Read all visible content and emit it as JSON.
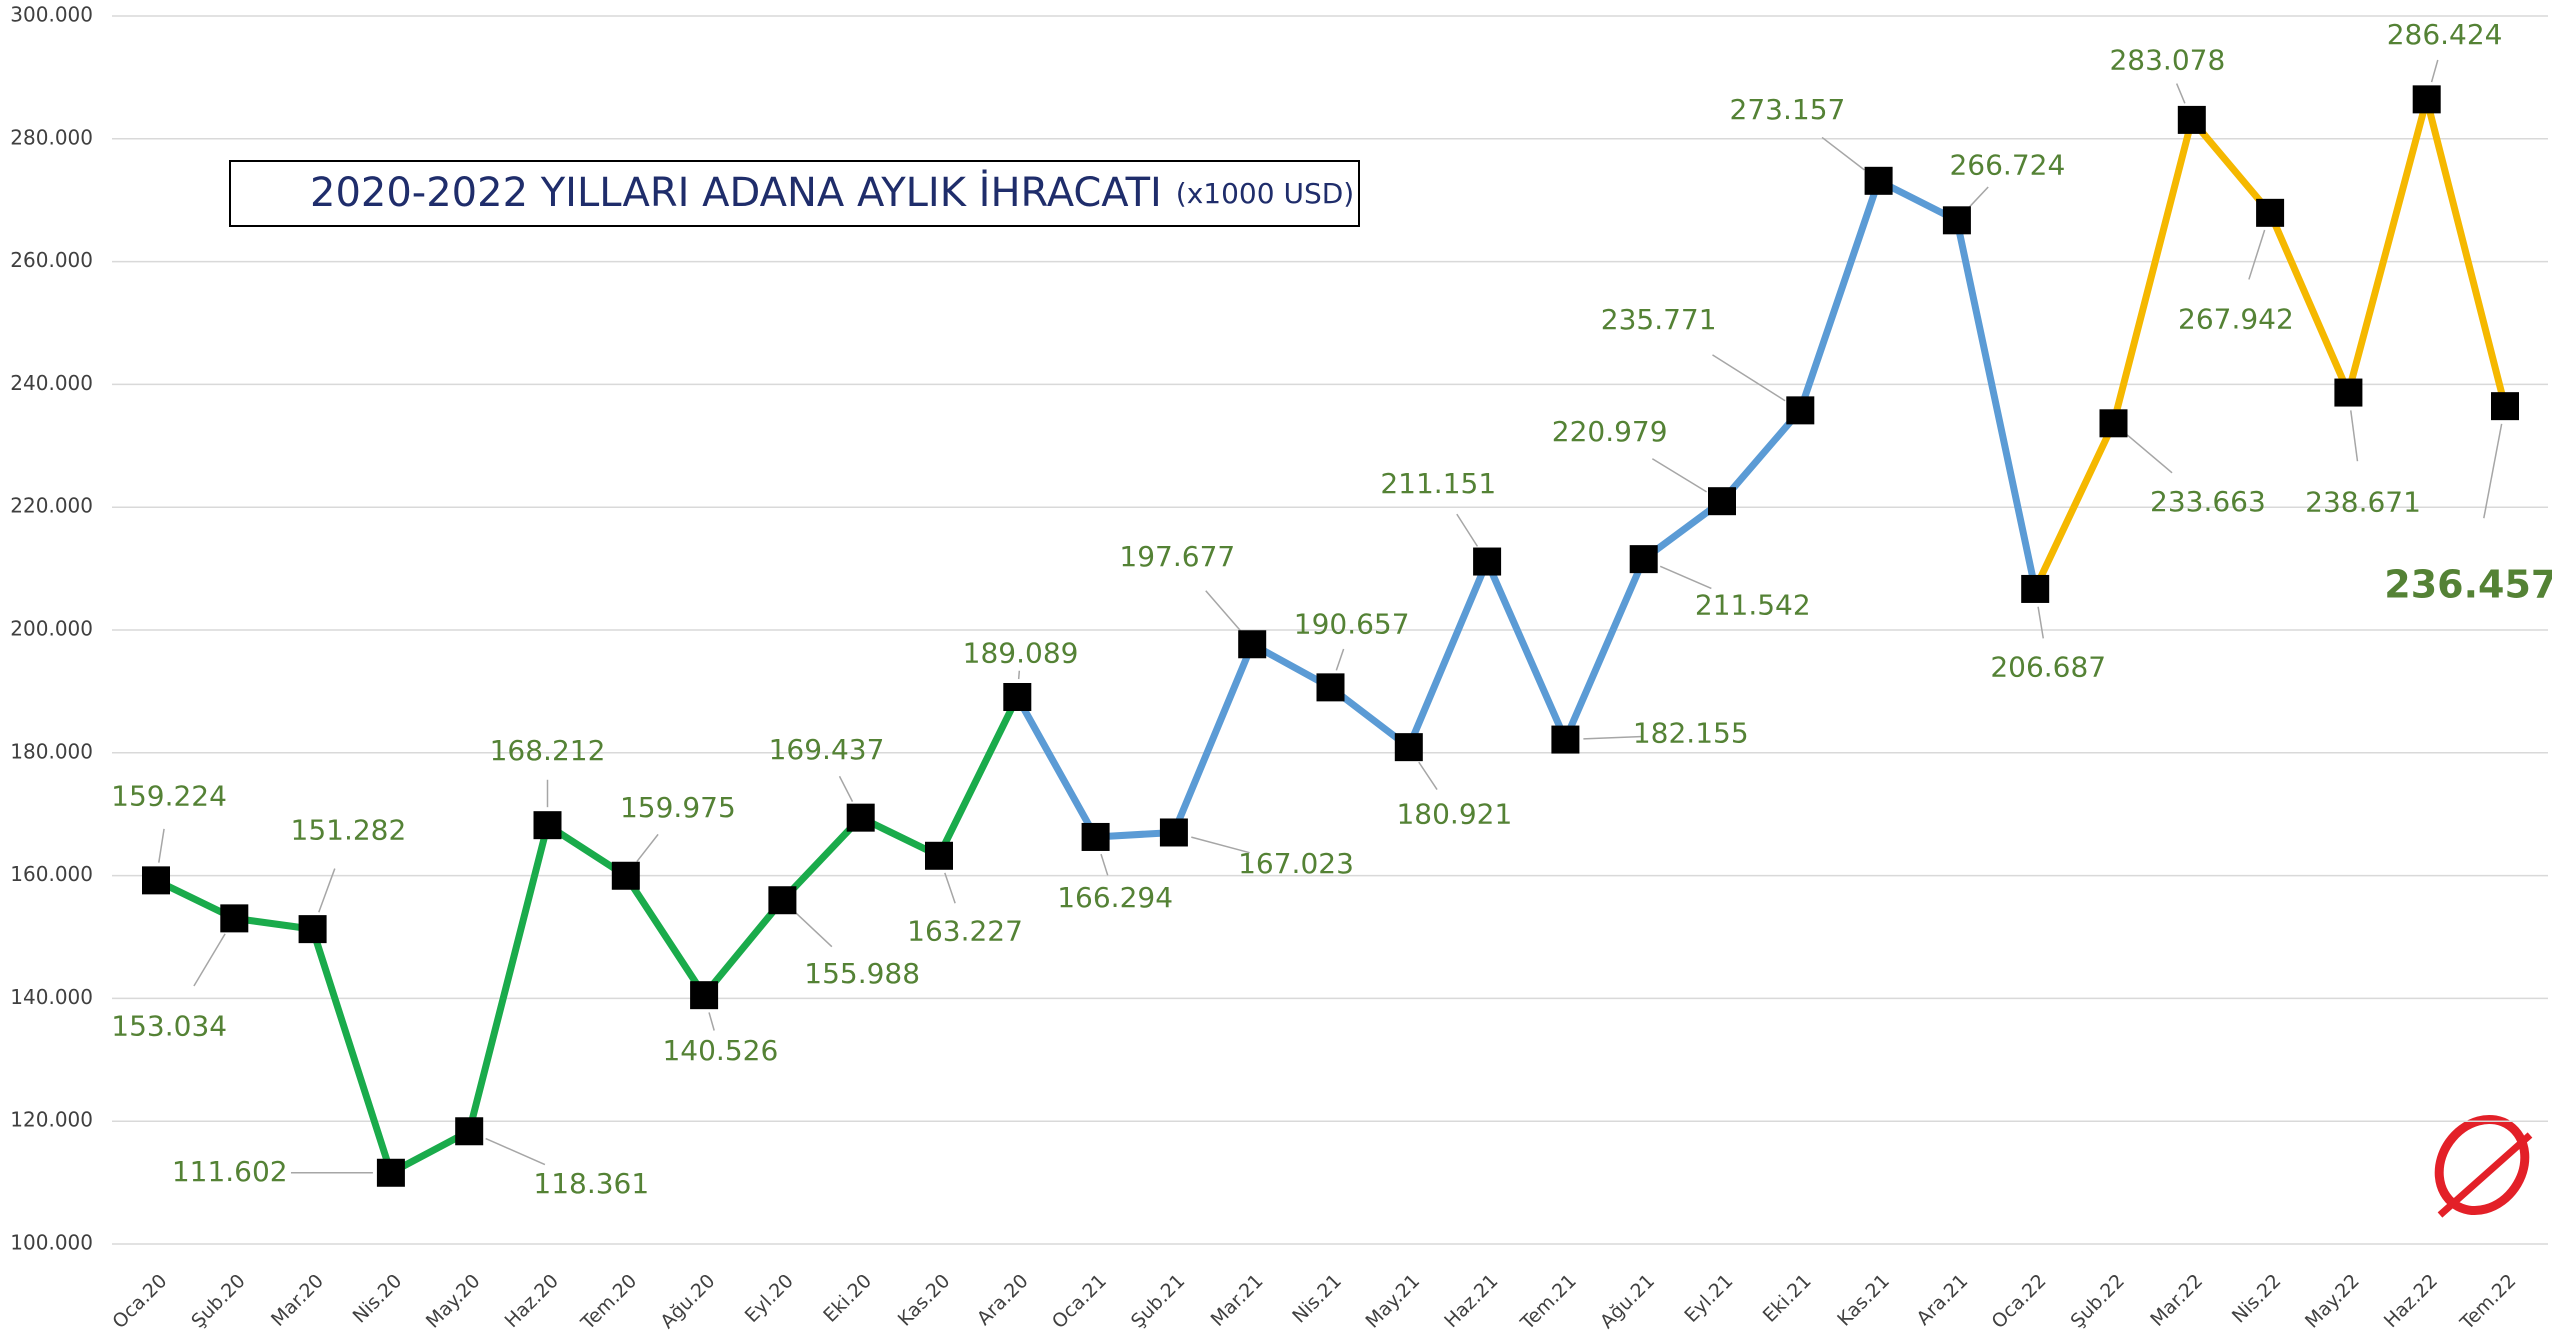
{
  "chart_data": {
    "type": "line",
    "title": "2020-2022 YILLARI ADANA AYLIK İHRACATI",
    "subtitle": "(x1000 USD)",
    "categories": [
      "Oca.20",
      "Şub.20",
      "Mar.20",
      "Nis.20",
      "May.20",
      "Haz.20",
      "Tem.20",
      "Ağu.20",
      "Eyl.20",
      "Eki.20",
      "Kas.20",
      "Ara.20",
      "Oca.21",
      "Şub.21",
      "Mar.21",
      "Nis.21",
      "May.21",
      "Haz.21",
      "Tem.21",
      "Ağu.21",
      "Eyl.21",
      "Eki.21",
      "Kas.21",
      "Ara.21",
      "Oca.22",
      "Şub.22",
      "Mar.22",
      "Nis.22",
      "May.22",
      "Haz.22",
      "Tem.22"
    ],
    "series": [
      {
        "values": [
          159224,
          153034,
          151282,
          111602,
          118361,
          168212,
          159975,
          140526,
          155988,
          169437,
          163227,
          189089,
          166294,
          167023,
          197677,
          190657,
          180921,
          211151,
          182155,
          211542,
          220979,
          235771,
          273157,
          266724,
          206687,
          233663,
          283078,
          267942,
          238671,
          286424,
          236457
        ],
        "value_labels": [
          "159.224",
          "153.034",
          "151.282",
          "111.602",
          "118.361",
          "168.212",
          "159.975",
          "140.526",
          "155.988",
          "169.437",
          "163.227",
          "189.089",
          "166.294",
          "167.023",
          "197.677",
          "190.657",
          "180.921",
          "211.151",
          "182.155",
          "211.542",
          "220.979",
          "235.771",
          "273.157",
          "266.724",
          "206.687",
          "233.663",
          "283.078",
          "267.942",
          "238.671",
          "286.424",
          "236.457"
        ],
        "segment_colors": [
          "#1aab4b",
          "#1aab4b",
          "#1aab4b",
          "#1aab4b",
          "#1aab4b",
          "#1aab4b",
          "#1aab4b",
          "#1aab4b",
          "#1aab4b",
          "#1aab4b",
          "#1aab4b",
          "#5b9bd5",
          "#5b9bd5",
          "#5b9bd5",
          "#5b9bd5",
          "#5b9bd5",
          "#5b9bd5",
          "#5b9bd5",
          "#5b9bd5",
          "#5b9bd5",
          "#5b9bd5",
          "#5b9bd5",
          "#5b9bd5",
          "#5b9bd5",
          "#f5b800",
          "#f5b800",
          "#f5b800",
          "#f5b800",
          "#f5b800",
          "#f5b800"
        ],
        "marker_color": "#000000",
        "label_color": "#548235"
      }
    ],
    "ylim": [
      100000,
      300000
    ],
    "yticks": [
      {
        "value": 100000,
        "label": "100.000"
      },
      {
        "value": 120000,
        "label": "120.000"
      },
      {
        "value": 140000,
        "label": "140.000"
      },
      {
        "value": 160000,
        "label": "160.000"
      },
      {
        "value": 180000,
        "label": "180.000"
      },
      {
        "value": 200000,
        "label": "200.000"
      },
      {
        "value": 220000,
        "label": "220.000"
      },
      {
        "value": 240000,
        "label": "240.000"
      },
      {
        "value": 260000,
        "label": "260.000"
      },
      {
        "value": 280000,
        "label": "280.000"
      },
      {
        "value": 300000,
        "label": "300.000"
      }
    ],
    "grid": true
  }
}
